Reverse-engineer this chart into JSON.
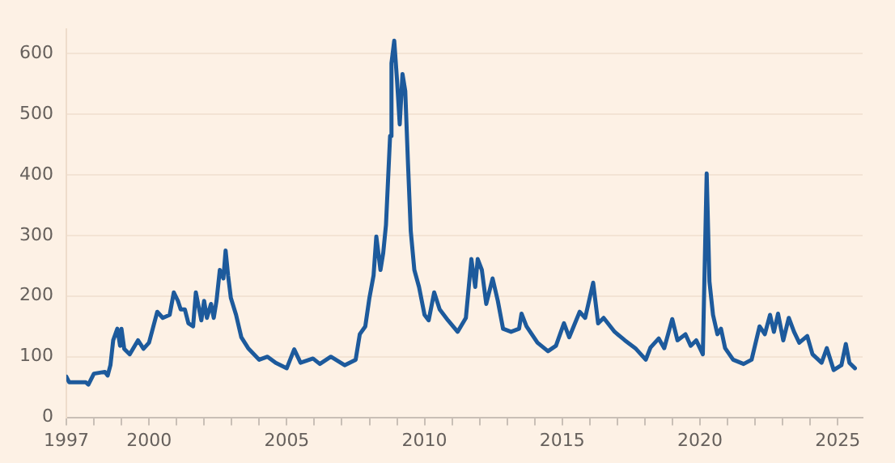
{
  "chart_data": {
    "type": "line",
    "x": [
      1997.0,
      1997.1,
      1997.7,
      1997.8,
      1998.0,
      1998.4,
      1998.5,
      1998.6,
      1998.7,
      1998.85,
      1998.95,
      1999.0,
      1999.1,
      1999.3,
      1999.6,
      1999.8,
      2000.0,
      2000.3,
      2000.5,
      2000.75,
      2000.9,
      2001.05,
      2001.15,
      2001.3,
      2001.43,
      2001.6,
      2001.7,
      2001.9,
      2002.0,
      2002.1,
      2002.25,
      2002.35,
      2002.45,
      2002.57,
      2002.7,
      2002.78,
      2002.87,
      2002.97,
      2003.16,
      2003.35,
      2003.6,
      2004.0,
      2004.3,
      2004.6,
      2005.0,
      2005.27,
      2005.5,
      2005.95,
      2006.2,
      2006.6,
      2007.1,
      2007.5,
      2007.65,
      2007.85,
      2008.0,
      2008.15,
      2008.25,
      2008.4,
      2008.5,
      2008.6,
      2008.75,
      2008.8,
      2008.9,
      2009.0,
      2009.1,
      2009.2,
      2009.3,
      2009.4,
      2009.5,
      2009.63,
      2009.8,
      2010.0,
      2010.15,
      2010.35,
      2010.55,
      2010.85,
      2011.2,
      2011.5,
      2011.7,
      2011.84,
      2011.93,
      2012.08,
      2012.24,
      2012.47,
      2012.66,
      2012.85,
      2013.14,
      2013.43,
      2013.52,
      2013.7,
      2014.1,
      2014.48,
      2014.77,
      2015.06,
      2015.25,
      2015.63,
      2015.83,
      2016.12,
      2016.3,
      2016.5,
      2016.9,
      2017.27,
      2017.65,
      2018.03,
      2018.2,
      2018.5,
      2018.7,
      2018.99,
      2019.18,
      2019.47,
      2019.66,
      2019.86,
      2020.1,
      2020.24,
      2020.34,
      2020.47,
      2020.63,
      2020.76,
      2020.91,
      2021.2,
      2021.58,
      2021.87,
      2022.16,
      2022.35,
      2022.54,
      2022.68,
      2022.83,
      2023.02,
      2023.22,
      2023.41,
      2023.6,
      2023.89,
      2024.08,
      2024.41,
      2024.6,
      2024.85,
      2025.13,
      2025.29,
      2025.42,
      2025.62
    ],
    "series": [
      {
        "color": "#1d5a9c",
        "values": [
          67,
          58,
          58,
          54,
          72,
          75,
          69,
          86,
          127,
          146,
          118,
          146,
          113,
          104,
          127,
          113,
          123,
          174,
          164,
          169,
          206,
          192,
          178,
          178,
          155,
          150,
          206,
          160,
          192,
          164,
          187,
          164,
          192,
          243,
          229,
          275,
          234,
          197,
          169,
          132,
          114,
          95,
          100,
          90,
          81,
          112,
          90,
          97,
          88,
          100,
          86,
          95,
          137,
          150,
          197,
          234,
          298,
          243,
          271,
          317,
          464,
          584,
          621,
          557,
          483,
          566,
          538,
          418,
          307,
          243,
          215,
          169,
          160,
          206,
          178,
          160,
          141,
          164,
          261,
          215,
          261,
          243,
          187,
          229,
          192,
          146,
          141,
          146,
          171,
          150,
          123,
          109,
          118,
          155,
          132,
          174,
          164,
          222,
          155,
          164,
          141,
          127,
          114,
          95,
          115,
          130,
          114,
          162,
          127,
          137,
          118,
          127,
          104,
          402,
          224,
          169,
          137,
          146,
          114,
          95,
          88,
          95,
          150,
          137,
          169,
          141,
          171,
          127,
          164,
          141,
          123,
          134,
          104,
          90,
          114,
          78,
          86,
          121,
          90,
          81
        ]
      }
    ],
    "xlim": [
      1997,
      2025.9
    ],
    "xticks": [
      1997,
      {
        "value": 1998,
        "label": null
      },
      {
        "value": 1999,
        "label": null
      },
      2000,
      {
        "value": 2001,
        "label": null
      },
      {
        "value": 2002,
        "label": null
      },
      {
        "value": 2003,
        "label": null
      },
      {
        "value": 2004,
        "label": null
      },
      2005,
      {
        "value": 2006,
        "label": null
      },
      {
        "value": 2007,
        "label": null
      },
      {
        "value": 2008,
        "label": null
      },
      {
        "value": 2009,
        "label": null
      },
      2010,
      {
        "value": 2011,
        "label": null
      },
      {
        "value": 2012,
        "label": null
      },
      {
        "value": 2013,
        "label": null
      },
      {
        "value": 2014,
        "label": null
      },
      2015,
      {
        "value": 2016,
        "label": null
      },
      {
        "value": 2017,
        "label": null
      },
      {
        "value": 2018,
        "label": null
      },
      {
        "value": 2019,
        "label": null
      },
      2020,
      {
        "value": 2021,
        "label": null
      },
      {
        "value": 2022,
        "label": null
      },
      {
        "value": 2023,
        "label": null
      },
      {
        "value": 2024,
        "label": null
      },
      2025
    ],
    "ylim": [
      0,
      640
    ],
    "yticks": [
      0,
      100,
      200,
      300,
      400,
      500,
      600
    ],
    "grid": "y",
    "legend": false,
    "marker": "none",
    "line_style": "solid"
  }
}
